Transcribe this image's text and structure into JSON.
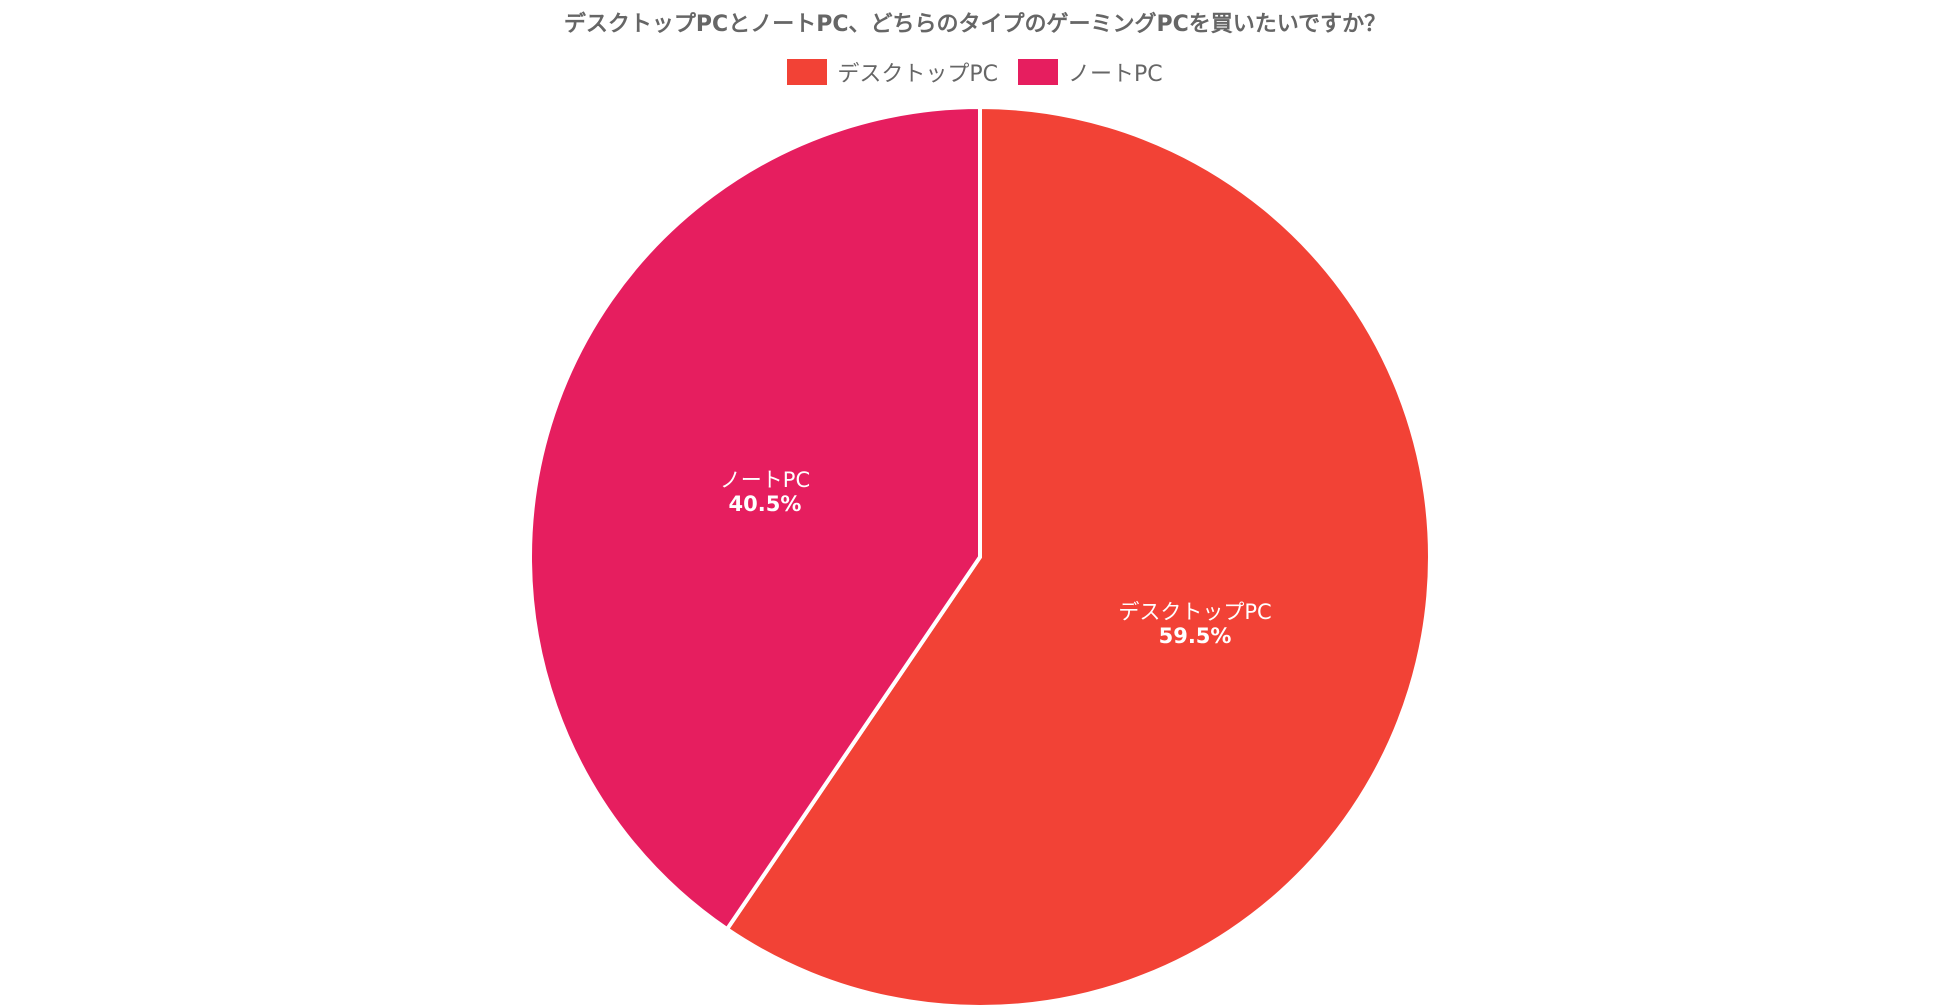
{
  "chart_data": {
    "type": "pie",
    "title": "デスクトップPCとノートPC、どちらのタイプのゲーミングPCを買いたいですか？",
    "legend_position": "top-center",
    "slices": [
      {
        "label": "デスクトップPC",
        "value": 59.5,
        "display": "59.5%",
        "color": "#F24236"
      },
      {
        "label": "ノートPC",
        "value": 40.5,
        "display": "40.5%",
        "color": "#E61E5F"
      }
    ]
  }
}
